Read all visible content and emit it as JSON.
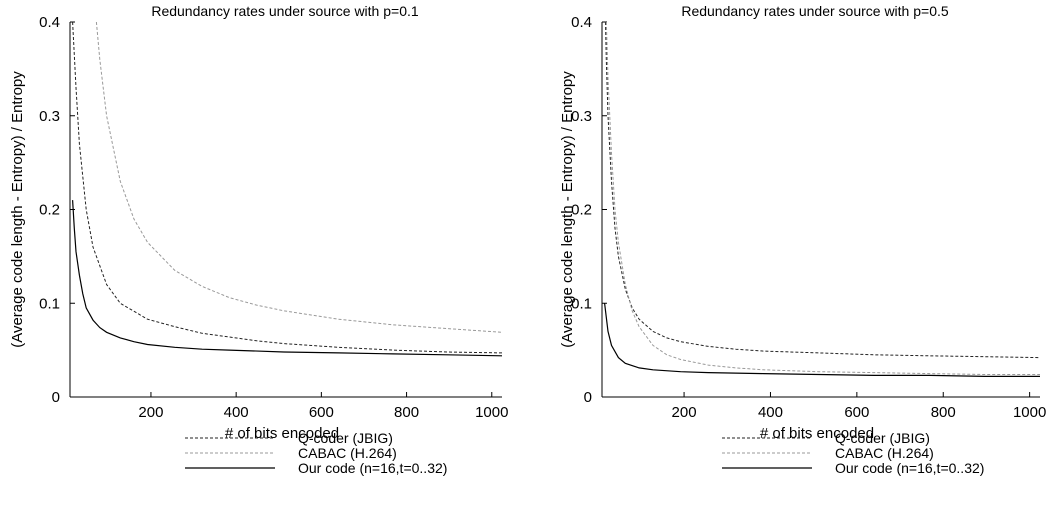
{
  "chart_data": [
    {
      "type": "line",
      "title": "Redundancy rates under source with p=0.1",
      "xlabel": "# of bits encoded",
      "ylabel": "(Average code length - Entropy) / Entropy",
      "xlim": [
        10,
        1024
      ],
      "ylim": [
        0,
        0.4
      ],
      "xticks": [
        200,
        400,
        600,
        800,
        1000
      ],
      "yticks": [
        0,
        0.1,
        0.2,
        0.3,
        0.4
      ],
      "xtick_labels": [
        "200",
        "400",
        "600",
        "800",
        "1000"
      ],
      "ytick_labels": [
        "0",
        "0.1",
        "0.2",
        "0.3",
        "0.4"
      ],
      "grid": false,
      "legend": "below",
      "series": [
        {
          "name": "Q-coder (JBIG)",
          "style": "dashed-dark",
          "x": [
            16,
            24,
            32,
            48,
            64,
            96,
            128,
            192,
            256,
            320,
            384,
            448,
            512,
            640,
            768,
            896,
            1024
          ],
          "values": [
            0.4,
            0.33,
            0.27,
            0.2,
            0.16,
            0.12,
            0.1,
            0.083,
            0.075,
            0.068,
            0.064,
            0.06,
            0.057,
            0.053,
            0.05,
            0.048,
            0.047
          ]
        },
        {
          "name": "CABAC (H.264)",
          "style": "dashed-light",
          "x": [
            72,
            80,
            96,
            128,
            160,
            192,
            256,
            320,
            384,
            448,
            512,
            640,
            768,
            896,
            1024
          ],
          "values": [
            0.4,
            0.36,
            0.3,
            0.23,
            0.19,
            0.165,
            0.135,
            0.118,
            0.106,
            0.098,
            0.092,
            0.083,
            0.077,
            0.073,
            0.069
          ]
        },
        {
          "name": "Our code (n=16,t=0..32)",
          "style": "solid",
          "x": [
            16,
            20,
            24,
            32,
            40,
            48,
            64,
            80,
            96,
            128,
            160,
            192,
            256,
            320,
            384,
            512,
            640,
            768,
            896,
            1024
          ],
          "values": [
            0.21,
            0.18,
            0.155,
            0.13,
            0.11,
            0.095,
            0.082,
            0.074,
            0.069,
            0.063,
            0.059,
            0.056,
            0.053,
            0.051,
            0.05,
            0.048,
            0.047,
            0.046,
            0.045,
            0.044
          ]
        }
      ]
    },
    {
      "type": "line",
      "title": "Redundancy rates under source with p=0.5",
      "xlabel": "# of bits encoded",
      "ylabel": "(Average code length - Entropy) / Entropy",
      "xlim": [
        10,
        1024
      ],
      "ylim": [
        0,
        0.4
      ],
      "xticks": [
        200,
        400,
        600,
        800,
        1000
      ],
      "yticks": [
        0,
        0.1,
        0.2,
        0.3,
        0.4
      ],
      "xtick_labels": [
        "200",
        "400",
        "600",
        "800",
        "1000"
      ],
      "ytick_labels": [
        "0",
        "0.1",
        "0.2",
        "0.3",
        "0.4"
      ],
      "grid": false,
      "legend": "below",
      "series": [
        {
          "name": "Q-coder (JBIG)",
          "style": "dashed-dark",
          "x": [
            18,
            20,
            24,
            32,
            40,
            48,
            64,
            80,
            96,
            128,
            160,
            192,
            256,
            320,
            384,
            512,
            640,
            768,
            896,
            1024
          ],
          "values": [
            0.4,
            0.36,
            0.3,
            0.23,
            0.18,
            0.15,
            0.115,
            0.095,
            0.083,
            0.07,
            0.063,
            0.059,
            0.054,
            0.051,
            0.049,
            0.047,
            0.045,
            0.044,
            0.043,
            0.042
          ]
        },
        {
          "name": "CABAC (H.264)",
          "style": "dashed-light",
          "x": [
            20,
            22,
            24,
            32,
            40,
            48,
            64,
            80,
            96,
            128,
            160,
            192,
            256,
            320,
            384,
            512,
            640,
            768,
            896,
            1024
          ],
          "values": [
            0.4,
            0.37,
            0.34,
            0.26,
            0.2,
            0.165,
            0.12,
            0.092,
            0.075,
            0.055,
            0.045,
            0.04,
            0.034,
            0.031,
            0.029,
            0.027,
            0.026,
            0.025,
            0.024,
            0.024
          ]
        },
        {
          "name": "Our code (n=16,t=0..32)",
          "style": "solid",
          "x": [
            16,
            24,
            32,
            48,
            64,
            96,
            128,
            192,
            256,
            384,
            512,
            640,
            768,
            896,
            1024
          ],
          "values": [
            0.1,
            0.07,
            0.055,
            0.042,
            0.036,
            0.031,
            0.029,
            0.027,
            0.026,
            0.025,
            0.024,
            0.023,
            0.023,
            0.022,
            0.022
          ]
        }
      ]
    }
  ]
}
